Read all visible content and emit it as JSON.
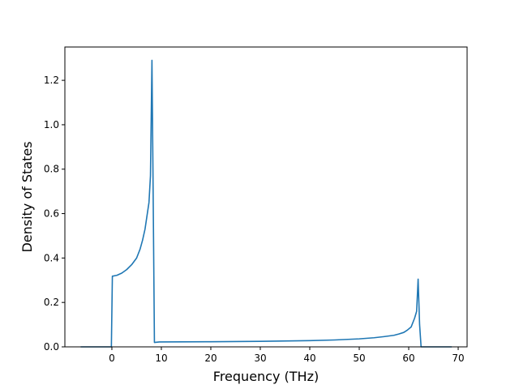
{
  "chart_data": {
    "type": "line",
    "title": "",
    "xlabel": "Frequency (THz)",
    "ylabel": "Density of States",
    "xlim": [
      -9.5,
      71.8
    ],
    "ylim": [
      0,
      1.35
    ],
    "xticks": [
      0,
      10,
      20,
      30,
      40,
      50,
      60,
      70
    ],
    "yticks": [
      0.0,
      0.2,
      0.4,
      0.6,
      0.8,
      1.0,
      1.2
    ],
    "xtick_labels": [
      "0",
      "10",
      "20",
      "30",
      "40",
      "50",
      "60",
      "70"
    ],
    "ytick_labels": [
      "0.0",
      "0.2",
      "0.4",
      "0.6",
      "0.8",
      "1.0",
      "1.2"
    ],
    "grid": false,
    "legend": "none",
    "color": "#1f77b4",
    "series": [
      {
        "x": [
          -6.3,
          -0.1,
          0.1,
          1.0,
          2.0,
          3.0,
          4.0,
          5.0,
          5.7,
          6.2,
          6.7,
          7.1,
          7.5,
          7.8,
          8.1,
          8.3,
          8.6,
          9.6,
          20,
          30,
          40,
          45,
          50,
          53,
          55,
          57,
          58,
          59,
          59.7,
          60.5,
          61.2,
          61.6,
          61.9,
          62.2,
          62.5,
          68.7
        ],
        "y": [
          0.0,
          0.0,
          0.318,
          0.322,
          0.332,
          0.348,
          0.37,
          0.4,
          0.44,
          0.48,
          0.53,
          0.59,
          0.65,
          0.77,
          1.29,
          0.8,
          0.02,
          0.022,
          0.023,
          0.025,
          0.028,
          0.031,
          0.036,
          0.041,
          0.046,
          0.052,
          0.058,
          0.065,
          0.075,
          0.09,
          0.13,
          0.16,
          0.305,
          0.1,
          0.0,
          0.0
        ]
      }
    ]
  }
}
